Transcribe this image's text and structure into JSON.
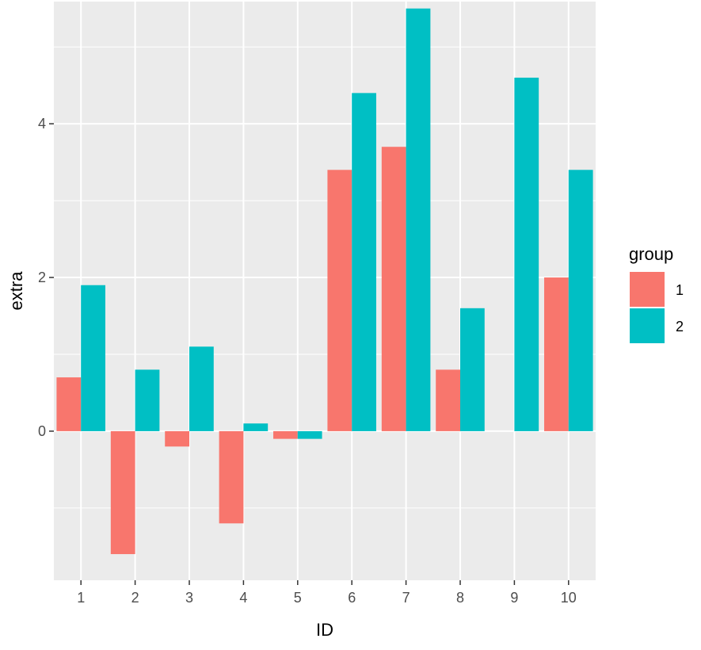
{
  "chart_data": {
    "type": "bar",
    "title": "",
    "xlabel": "ID",
    "ylabel": "extra",
    "categories": [
      "1",
      "2",
      "3",
      "4",
      "5",
      "6",
      "7",
      "8",
      "9",
      "10"
    ],
    "series": [
      {
        "name": "1",
        "color": "#F8766D",
        "values": [
          0.7,
          -1.6,
          -0.2,
          -1.2,
          -0.1,
          3.4,
          3.7,
          0.8,
          0.0,
          2.0
        ]
      },
      {
        "name": "2",
        "color": "#00BFC4",
        "values": [
          1.9,
          0.8,
          1.1,
          0.1,
          -0.1,
          4.4,
          5.5,
          1.6,
          4.6,
          3.4
        ]
      }
    ],
    "ylim": [
      -1.94,
      5.59
    ],
    "yticks": [
      0,
      2,
      4
    ],
    "grid": true,
    "legend": {
      "title": "group",
      "position": "right"
    },
    "colors": {
      "panel_background": "#EBEBEB",
      "grid_line": "#FFFFFF"
    }
  }
}
